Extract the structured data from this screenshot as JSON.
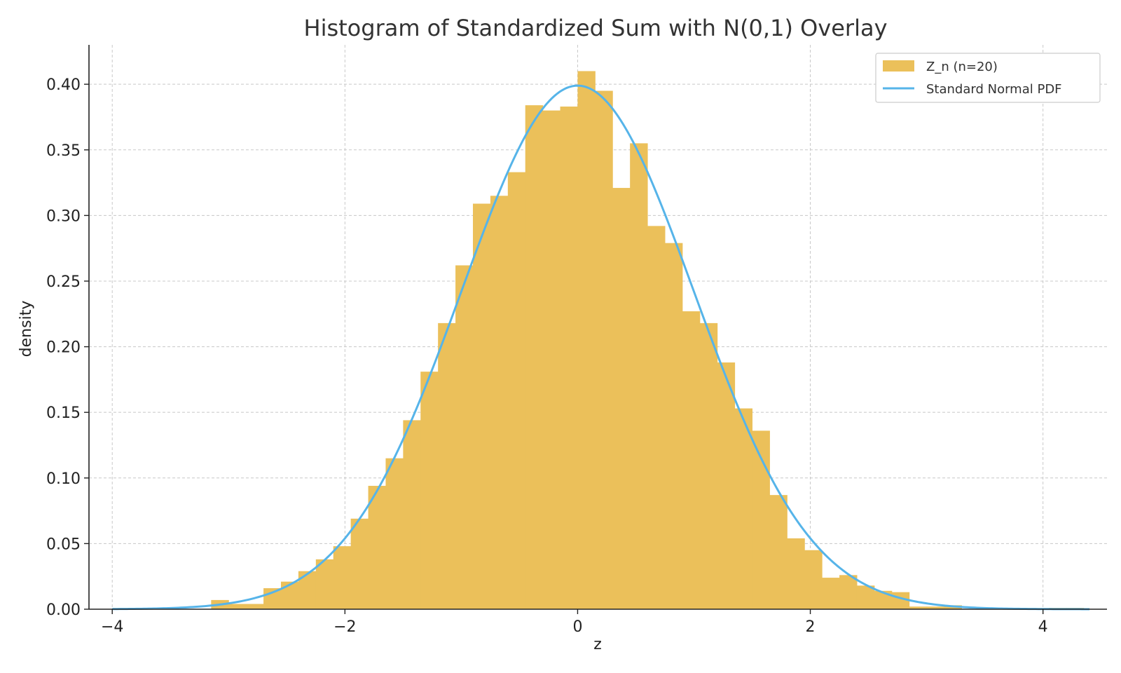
{
  "chart_data": {
    "type": "bar",
    "title": "Histogram of Standardized Sum with N(0,1) Overlay",
    "xlabel": "z",
    "ylabel": "density",
    "xlim": [
      -4.2,
      4.55
    ],
    "ylim": [
      0,
      0.43
    ],
    "xticks": [
      -4,
      -2,
      0,
      2,
      4
    ],
    "xtick_labels": [
      "−4",
      "−2",
      "0",
      "2",
      "4"
    ],
    "yticks": [
      0,
      0.05,
      0.1,
      0.15,
      0.2,
      0.25,
      0.3,
      0.35,
      0.4
    ],
    "ytick_labels": [
      "0.00",
      "0.05",
      "0.10",
      "0.15",
      "0.20",
      "0.25",
      "0.30",
      "0.35",
      "0.40"
    ],
    "grid": true,
    "legend_position": "top-right",
    "series": [
      {
        "name": "Z_n (n=20)",
        "kind": "histogram",
        "color": "#ebc05a",
        "bin_edges": [
          -3.15,
          -3.0,
          -2.85,
          -2.7,
          -2.55,
          -2.4,
          -2.25,
          -2.1,
          -1.95,
          -1.8,
          -1.65,
          -1.5,
          -1.35,
          -1.2,
          -1.05,
          -0.9,
          -0.75,
          -0.6,
          -0.45,
          -0.3,
          -0.15,
          0.0,
          0.15,
          0.3,
          0.45,
          0.6,
          0.75,
          0.9,
          1.05,
          1.2,
          1.35,
          1.5,
          1.65,
          1.8,
          1.95,
          2.1,
          2.25,
          2.4,
          2.55,
          2.7,
          2.85,
          3.0,
          3.15,
          3.3,
          3.45,
          3.6,
          3.75,
          3.9,
          4.05,
          4.2,
          4.35
        ],
        "values": [
          0.007,
          0.004,
          0.004,
          0.016,
          0.021,
          0.029,
          0.038,
          0.048,
          0.069,
          0.094,
          0.115,
          0.144,
          0.181,
          0.218,
          0.262,
          0.309,
          0.315,
          0.333,
          0.384,
          0.38,
          0.383,
          0.41,
          0.395,
          0.321,
          0.355,
          0.292,
          0.279,
          0.227,
          0.218,
          0.188,
          0.153,
          0.136,
          0.087,
          0.054,
          0.045,
          0.024,
          0.026,
          0.018,
          0.014,
          0.013,
          0.002,
          0.002,
          0.003,
          0.0,
          0.0,
          0.0,
          0.0,
          0.0,
          0.001,
          0.001
        ]
      },
      {
        "name": "Standard Normal PDF",
        "kind": "line",
        "color": "#56b4e9",
        "x_range": [
          -4,
          4.4
        ]
      }
    ]
  }
}
